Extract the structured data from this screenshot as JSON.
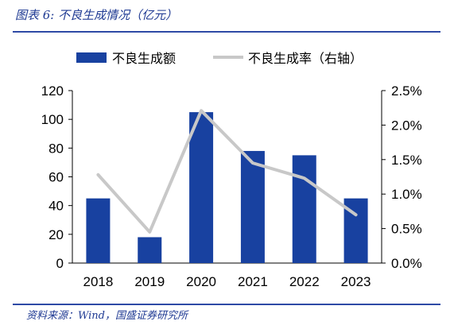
{
  "header": {
    "title": "图表 6:  不良生成情况（亿元）"
  },
  "footer": {
    "source": "资料来源：Wind，国盛证券研究所"
  },
  "colors": {
    "bar": "#1841a0",
    "line": "#c8c8c8",
    "accent": "#2e4aa5"
  },
  "chart_data": {
    "type": "bar",
    "categories": [
      "2018",
      "2019",
      "2020",
      "2021",
      "2022",
      "2023"
    ],
    "series": [
      {
        "name": "不良生成额",
        "type": "bar",
        "axis": "left",
        "values": [
          45,
          18,
          105,
          78,
          75,
          45
        ]
      },
      {
        "name": "不良生成率（右轴）",
        "type": "line",
        "axis": "right",
        "values": [
          1.28,
          0.45,
          2.21,
          1.45,
          1.23,
          0.7
        ]
      }
    ],
    "yleft": {
      "ylim": [
        0,
        120
      ],
      "ticks": [
        "0",
        "20",
        "40",
        "60",
        "80",
        "100",
        "120"
      ]
    },
    "yright": {
      "ylim": [
        0,
        2.5
      ],
      "ticks": [
        "0.0%",
        "0.5%",
        "1.0%",
        "1.5%",
        "2.0%",
        "2.5%"
      ]
    },
    "legend": "top"
  }
}
